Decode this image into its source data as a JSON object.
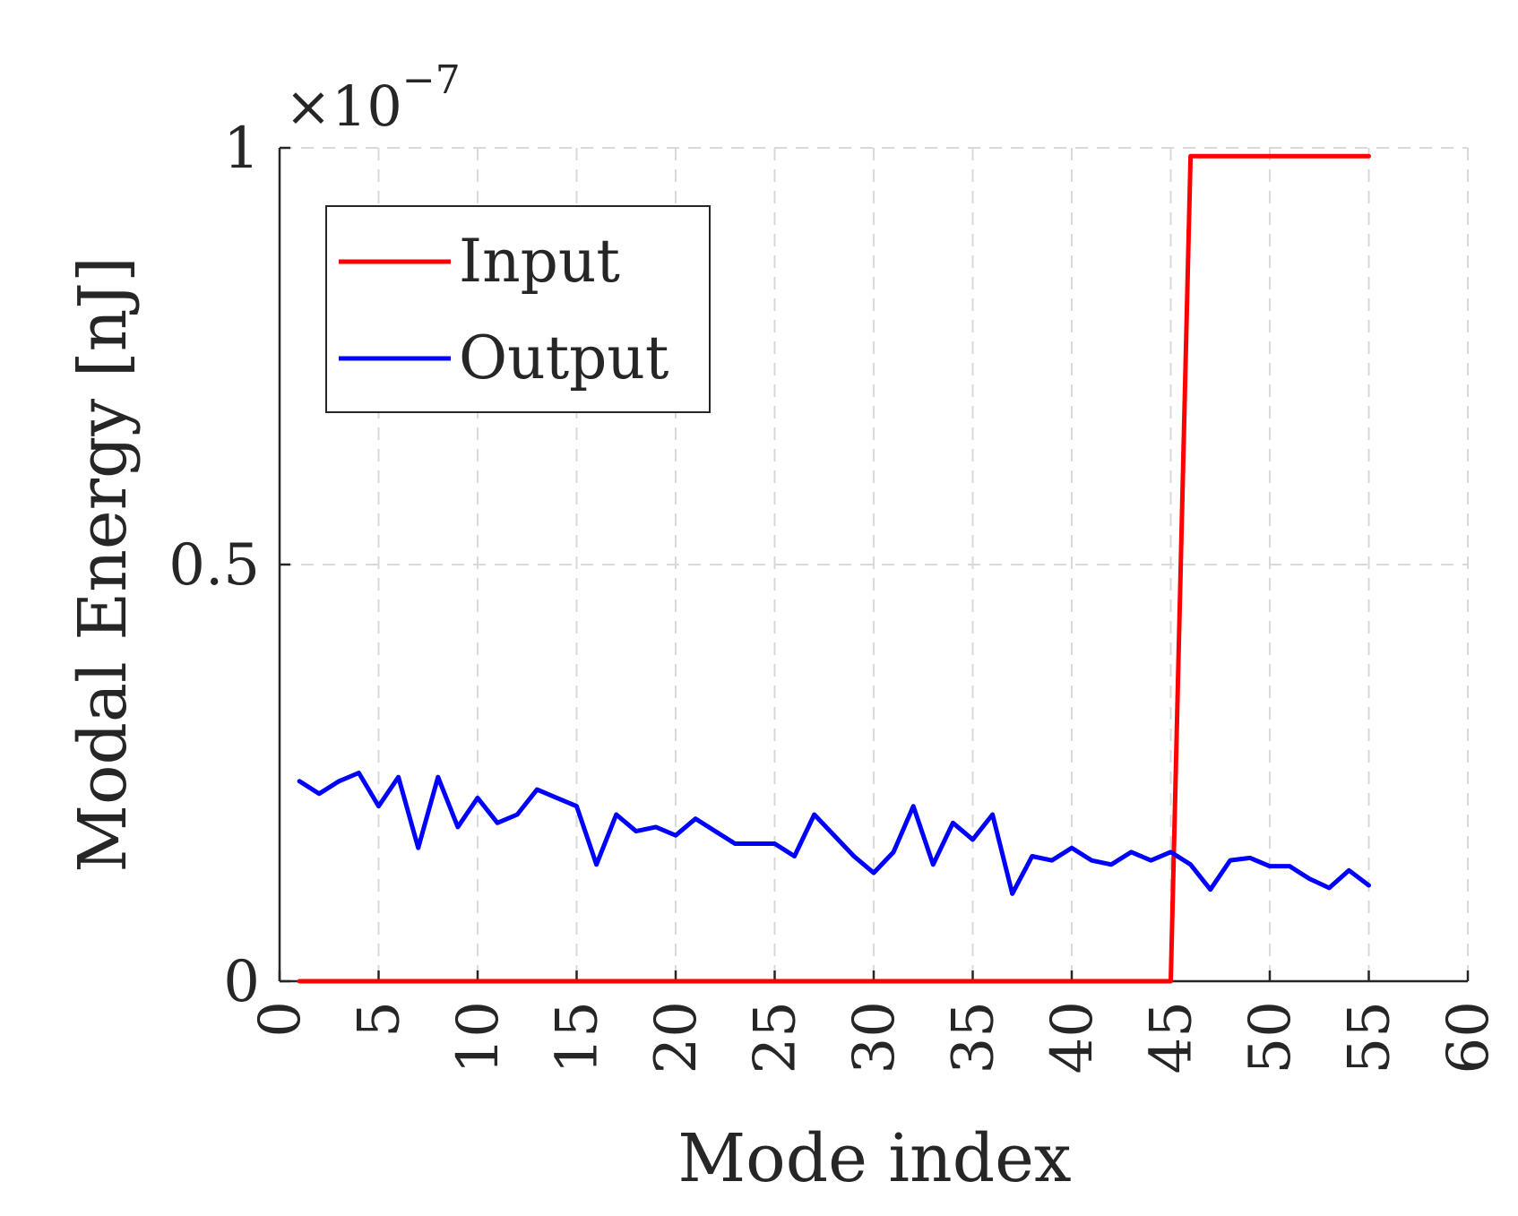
{
  "chart_data": {
    "type": "line",
    "xlabel": "Mode index",
    "ylabel": "Modal Energy [nJ]",
    "y_exponent_label": "×10",
    "y_exponent_power": "−7",
    "xlim": [
      0,
      60
    ],
    "ylim": [
      0,
      1
    ],
    "x_ticks": [
      "0",
      "5",
      "10",
      "15",
      "20",
      "25",
      "30",
      "35",
      "40",
      "45",
      "50",
      "55",
      "60"
    ],
    "y_ticks": [
      "0",
      "0.5",
      "1"
    ],
    "x_tick_values": [
      0,
      5,
      10,
      15,
      20,
      25,
      30,
      35,
      40,
      45,
      50,
      55,
      60
    ],
    "y_tick_values": [
      0,
      0.5,
      1
    ],
    "grid": true,
    "legend_position": "top-left",
    "series": [
      {
        "name": "Input",
        "color": "#ff0000",
        "x": [
          1,
          45,
          46,
          55
        ],
        "y": [
          0,
          0,
          0.99,
          0.99
        ]
      },
      {
        "name": "Output",
        "color": "#0000ff",
        "x": [
          1,
          2,
          3,
          4,
          5,
          6,
          7,
          8,
          9,
          10,
          11,
          12,
          13,
          14,
          15,
          16,
          17,
          18,
          19,
          20,
          21,
          22,
          23,
          24,
          25,
          26,
          27,
          28,
          29,
          30,
          31,
          32,
          33,
          34,
          35,
          36,
          37,
          38,
          39,
          40,
          41,
          42,
          43,
          44,
          45,
          46,
          47,
          48,
          49,
          50,
          51,
          52,
          53,
          54,
          55
        ],
        "y": [
          0.24,
          0.225,
          0.24,
          0.25,
          0.21,
          0.245,
          0.16,
          0.245,
          0.185,
          0.22,
          0.19,
          0.2,
          0.23,
          0.22,
          0.21,
          0.14,
          0.2,
          0.18,
          0.185,
          0.175,
          0.195,
          0.18,
          0.165,
          0.165,
          0.165,
          0.15,
          0.2,
          0.175,
          0.15,
          0.13,
          0.155,
          0.21,
          0.14,
          0.19,
          0.17,
          0.2,
          0.105,
          0.15,
          0.145,
          0.16,
          0.145,
          0.14,
          0.155,
          0.145,
          0.155,
          0.14,
          0.11,
          0.145,
          0.148,
          0.138,
          0.138,
          0.123,
          0.112,
          0.133,
          0.115
        ]
      }
    ]
  }
}
